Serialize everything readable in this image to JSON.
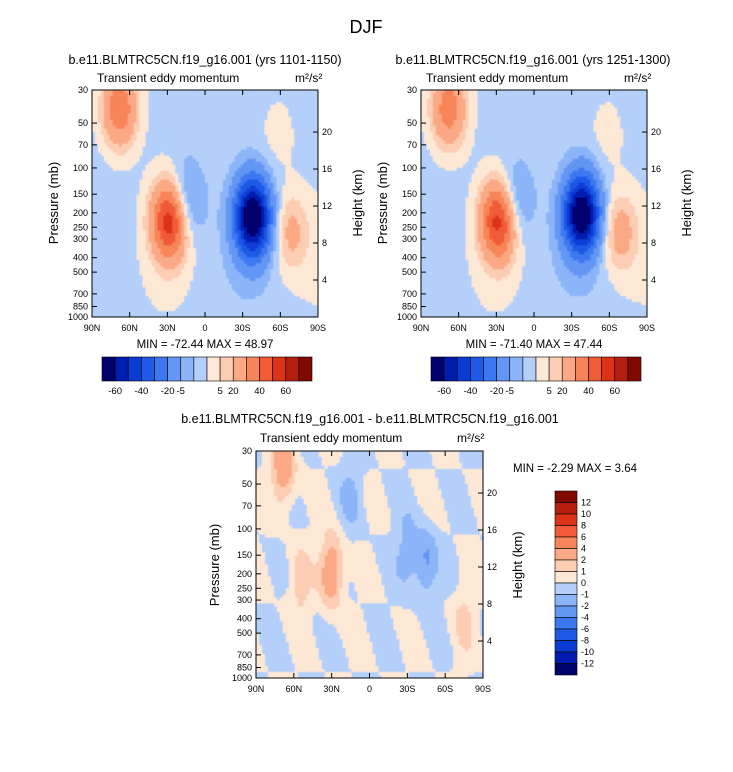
{
  "figure": {
    "title": "DJF"
  },
  "chart_data": [
    {
      "type": "heatmap",
      "title": "b.e11.BLMTRC5CN.f19_g16.001 (yrs 1101-1150)",
      "subtitle": "Transient eddy momentum",
      "units": "m²/s²",
      "xlabel": "",
      "ylabel": "Pressure (mb)",
      "y2label": "Height (km)",
      "x_ticks": [
        "90N",
        "60N",
        "30N",
        "0",
        "30S",
        "60S",
        "90S"
      ],
      "y_ticks": [
        30,
        50,
        70,
        100,
        150,
        200,
        250,
        300,
        400,
        500,
        700,
        850,
        1000
      ],
      "y_log": true,
      "ylim": [
        1000,
        30
      ],
      "y2_ticks": [
        4,
        8,
        12,
        16,
        20
      ],
      "stats": "MIN = -72.44  MAX = 48.97",
      "colorbar": {
        "orientation": "horizontal",
        "labels": [
          "-60",
          "-40",
          "-20",
          "-5",
          "5",
          "20",
          "40",
          "60"
        ]
      },
      "features": [
        {
          "lat": 68,
          "p": 40,
          "value": 30
        },
        {
          "lat": 28,
          "p": 225,
          "value": 49
        },
        {
          "lat": -38,
          "p": 215,
          "value": -72
        },
        {
          "lat": 16,
          "p": 170,
          "value": -18
        },
        {
          "lat": -68,
          "p": 270,
          "value": 14
        },
        {
          "lat": -58,
          "p": 60,
          "value": 4
        }
      ]
    },
    {
      "type": "heatmap",
      "title": "b.e11.BLMTRC5CN.f19_g16.001 (yrs 1251-1300)",
      "subtitle": "Transient eddy momentum",
      "units": "m²/s²",
      "xlabel": "",
      "ylabel": "Pressure (mb)",
      "y2label": "Height (km)",
      "x_ticks": [
        "90N",
        "60N",
        "30N",
        "0",
        "30S",
        "60S",
        "90S"
      ],
      "y_ticks": [
        30,
        50,
        70,
        100,
        150,
        200,
        250,
        300,
        400,
        500,
        700,
        850,
        1000
      ],
      "y_log": true,
      "ylim": [
        1000,
        30
      ],
      "y2_ticks": [
        4,
        8,
        12,
        16,
        20
      ],
      "stats": "MIN = -71.40  MAX = 47.44",
      "colorbar": {
        "orientation": "horizontal",
        "labels": [
          "-60",
          "-40",
          "-20",
          "-5",
          "5",
          "20",
          "40",
          "60"
        ]
      },
      "features": [
        {
          "lat": 68,
          "p": 40,
          "value": 28
        },
        {
          "lat": 28,
          "p": 225,
          "value": 47
        },
        {
          "lat": -38,
          "p": 205,
          "value": -71
        },
        {
          "lat": 16,
          "p": 170,
          "value": -16
        },
        {
          "lat": -68,
          "p": 270,
          "value": 16
        },
        {
          "lat": -58,
          "p": 60,
          "value": 4
        }
      ]
    },
    {
      "type": "heatmap",
      "title": "b.e11.BLMTRC5CN.f19_g16.001 - b.e11.BLMTRC5CN.f19_g16.001",
      "subtitle": "Transient eddy momentum",
      "units": "m²/s²",
      "xlabel": "",
      "ylabel": "Pressure (mb)",
      "y2label": "Height (km)",
      "x_ticks": [
        "90N",
        "60N",
        "30N",
        "0",
        "30S",
        "60S",
        "90S"
      ],
      "y_ticks": [
        30,
        50,
        70,
        100,
        150,
        200,
        250,
        300,
        400,
        500,
        700,
        850,
        1000
      ],
      "y_log": true,
      "ylim": [
        1000,
        30
      ],
      "y2_ticks": [
        4,
        8,
        12,
        16,
        20
      ],
      "stats": "MIN = -2.29  MAX = 3.64",
      "colorbar": {
        "orientation": "vertical",
        "labels": [
          "12",
          "10",
          "8",
          "6",
          "4",
          "2",
          "1",
          "0",
          "-1",
          "-2",
          "-4",
          "-6",
          "-8",
          "-10",
          "-12"
        ]
      },
      "features": [
        {
          "lat": 68,
          "p": 38,
          "value": 3.5
        },
        {
          "lat": 30,
          "p": 190,
          "value": 3.6
        },
        {
          "lat": 55,
          "p": 230,
          "value": 1.5
        },
        {
          "lat": -45,
          "p": 170,
          "value": -2.3
        },
        {
          "lat": -30,
          "p": 140,
          "value": -1.5
        },
        {
          "lat": 15,
          "p": 60,
          "value": -1.2
        },
        {
          "lat": -75,
          "p": 400,
          "value": 1.2
        }
      ]
    }
  ],
  "palette": {
    "twelve": [
      "#00006e",
      "#001db0",
      "#0a3cd4",
      "#1e5ae6",
      "#3c78f0",
      "#6496f4",
      "#8cb4f8",
      "#b4d0fa",
      "#d2e4fc",
      "#fde8d6",
      "#fccdb2",
      "#fba985",
      "#f78559",
      "#f05a34",
      "#dc3215",
      "#b41e0c",
      "#800a02"
    ]
  }
}
